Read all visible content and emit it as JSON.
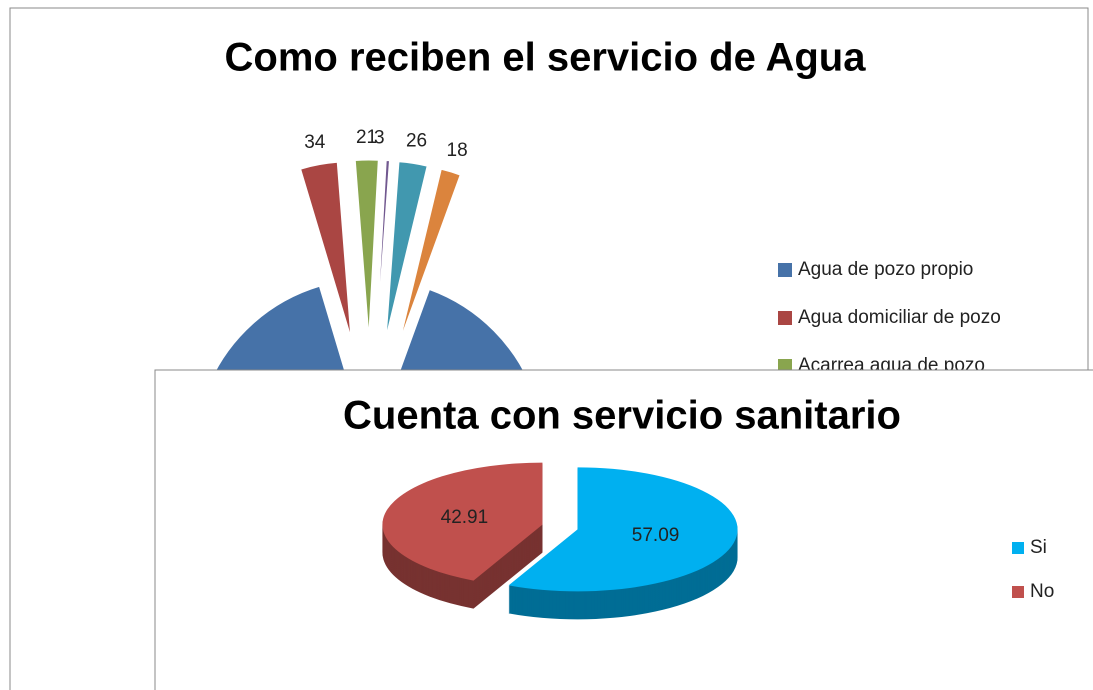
{
  "chart_data": [
    {
      "type": "pie",
      "title": "Como reciben el servicio de Agua",
      "categories": [
        "Agua de pozo propio",
        "Agua domiciliar de pozo",
        "Acarrea agua de pozo",
        null,
        null,
        null
      ],
      "values": [
        900,
        34,
        21,
        3,
        26,
        18
      ],
      "colors": [
        "#4672a8",
        "#aa4643",
        "#89a54e",
        "#71588f",
        "#4198af",
        "#db843d"
      ]
    },
    {
      "type": "pie3d",
      "title": "Cuenta con servicio sanitario",
      "categories": [
        "Si",
        "No"
      ],
      "values": [
        57.09,
        42.91
      ],
      "colors": [
        "#00b0f0",
        "#c0504d"
      ]
    }
  ]
}
